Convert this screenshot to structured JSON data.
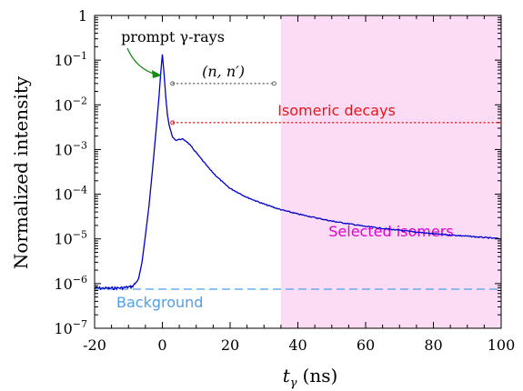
{
  "chart_data": {
    "type": "line",
    "xlabel_main": "t",
    "xlabel_sub": "γ",
    "xlabel_unit": "(ns)",
    "ylabel": "Normalized intensity",
    "xlim": [
      -20,
      100
    ],
    "ylim_log10": [
      -7,
      0
    ],
    "y_scale": "log",
    "x_ticks": [
      {
        "value": -20,
        "label": "-20"
      },
      {
        "value": 0,
        "label": "0"
      },
      {
        "value": 20,
        "label": "20"
      },
      {
        "value": 40,
        "label": "40"
      },
      {
        "value": 60,
        "label": "60"
      },
      {
        "value": 80,
        "label": "80"
      },
      {
        "value": 100,
        "label": "100"
      }
    ],
    "y_ticks": [
      {
        "exp": 0,
        "base": "1",
        "sup": ""
      },
      {
        "exp": -1,
        "base": "10",
        "sup": "−1"
      },
      {
        "exp": -2,
        "base": "10",
        "sup": "−2"
      },
      {
        "exp": -3,
        "base": "10",
        "sup": "−3"
      },
      {
        "exp": -4,
        "base": "10",
        "sup": "−4"
      },
      {
        "exp": -5,
        "base": "10",
        "sup": "−5"
      },
      {
        "exp": -6,
        "base": "10",
        "sup": "−6"
      },
      {
        "exp": -7,
        "base": "10",
        "sup": "−7"
      }
    ],
    "series": [
      {
        "color": "#0000cc",
        "points": [
          [
            -20,
            8e-07
          ],
          [
            -16,
            7.8e-07
          ],
          [
            -12,
            8e-07
          ],
          [
            -9,
            8.5e-07
          ],
          [
            -8,
            1e-06
          ],
          [
            -7,
            1.3e-06
          ],
          [
            -6,
            3e-06
          ],
          [
            -5,
            1.2e-05
          ],
          [
            -4,
            5e-05
          ],
          [
            -3,
            0.0003
          ],
          [
            -2,
            0.002
          ],
          [
            -1,
            0.015
          ],
          [
            -0.5,
            0.05
          ],
          [
            0,
            0.135
          ],
          [
            0.5,
            0.05
          ],
          [
            1,
            0.015
          ],
          [
            1.5,
            0.006
          ],
          [
            2,
            0.0035
          ],
          [
            3,
            0.0019
          ],
          [
            4,
            0.0016
          ],
          [
            5,
            0.0017
          ],
          [
            6,
            0.0017
          ],
          [
            7,
            0.00155
          ],
          [
            8,
            0.0013
          ],
          [
            10,
            0.00085
          ],
          [
            12,
            0.00055
          ],
          [
            14,
            0.00036
          ],
          [
            16,
            0.00025
          ],
          [
            18,
            0.00018
          ],
          [
            20,
            0.000135
          ],
          [
            25,
            8.5e-05
          ],
          [
            30,
            6e-05
          ],
          [
            35,
            4.5e-05
          ],
          [
            40,
            3.6e-05
          ],
          [
            50,
            2.5e-05
          ],
          [
            60,
            1.9e-05
          ],
          [
            70,
            1.55e-05
          ],
          [
            80,
            1.3e-05
          ],
          [
            90,
            1.15e-05
          ],
          [
            100,
            1e-05
          ]
        ]
      }
    ],
    "background": {
      "label": "Background",
      "y": 7.5e-07,
      "color": "#4f9fe6"
    },
    "selected_region": {
      "label": "Selected isomers",
      "x": [
        35,
        100
      ],
      "fill": "#fcdcf4",
      "text_color": "#e000cf"
    },
    "annotations": [
      {
        "label": "prompt γ-rays",
        "color": "#1a8a1a"
      },
      {
        "label": "(n, n′)",
        "color": "#666666",
        "x": [
          3,
          33
        ],
        "y": 0.03
      },
      {
        "label": "Isomeric decays",
        "color": "#e8161c",
        "x": [
          3,
          100
        ],
        "y": 0.004
      }
    ]
  }
}
